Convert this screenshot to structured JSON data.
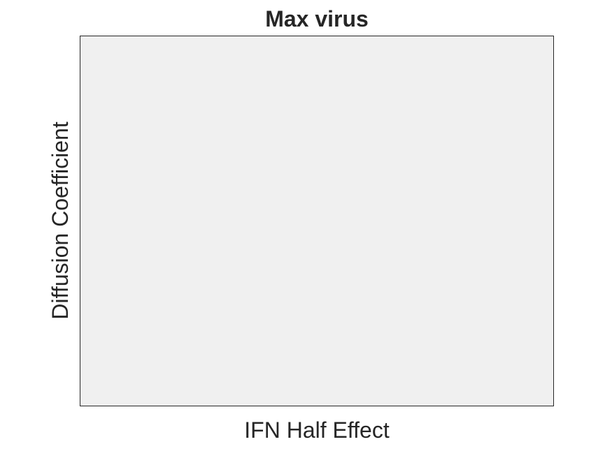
{
  "chart_data": {
    "type": "heatmap",
    "title": "Max virus",
    "xlabel": "IFN Half Effect",
    "ylabel": "Diffusion Coefficient",
    "x": [],
    "y": [],
    "values": [],
    "grid": false,
    "background_color": "#f0f0f0",
    "axis_color": "#262626"
  }
}
